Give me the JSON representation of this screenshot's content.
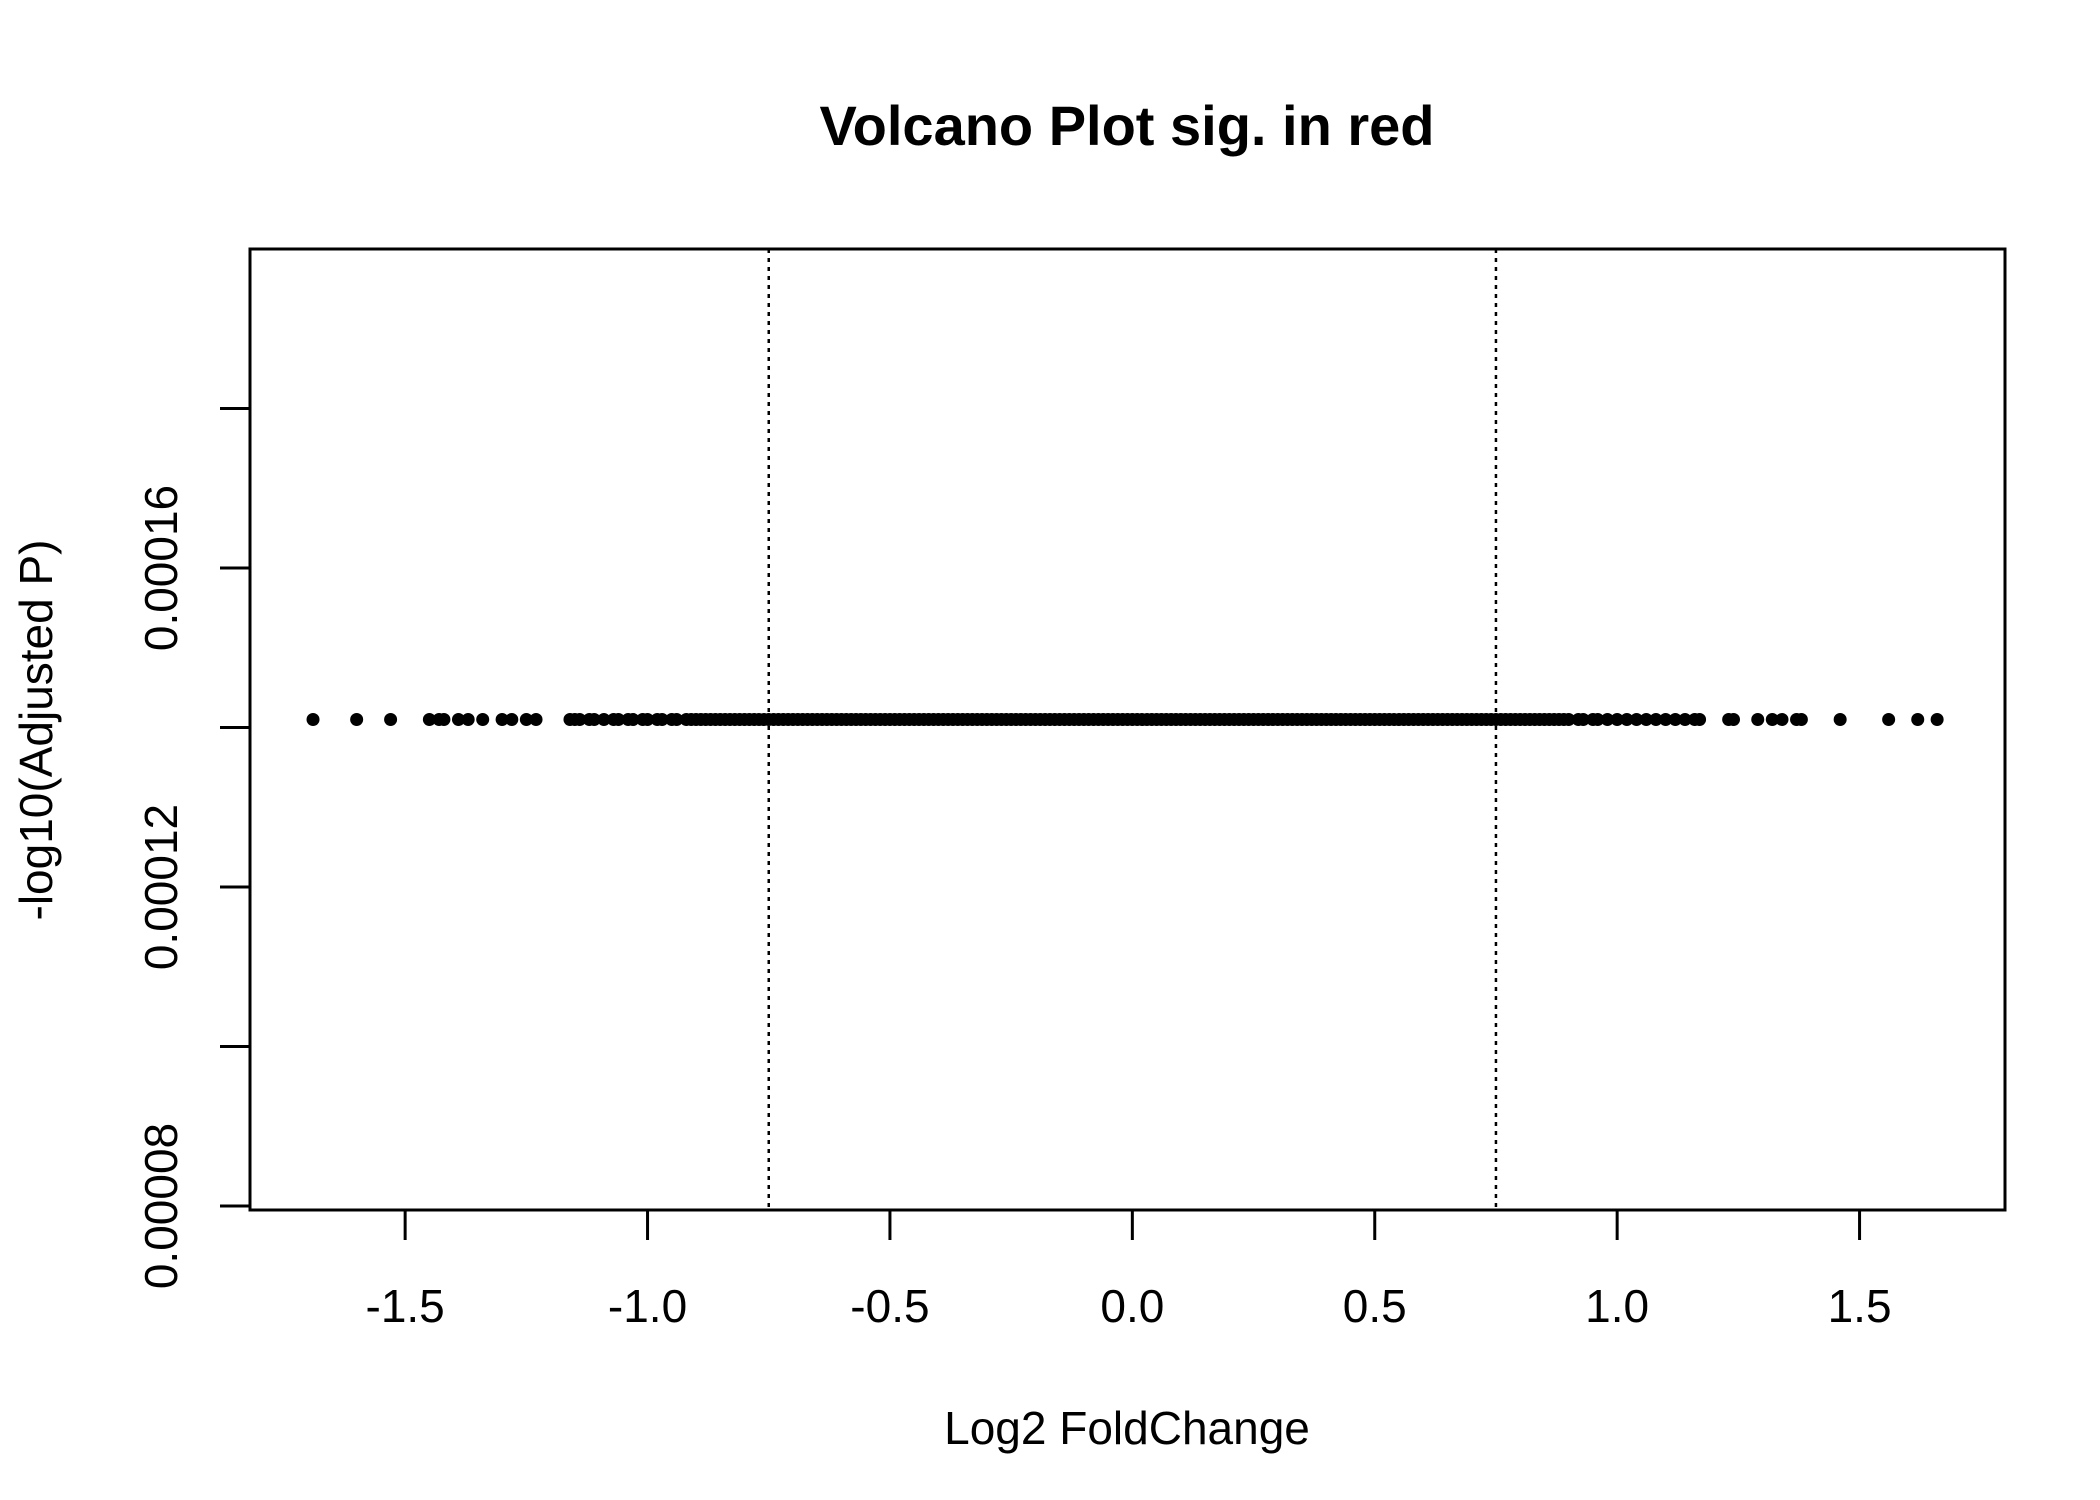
{
  "chart_data": {
    "type": "scatter",
    "title": "Volcano Plot sig. in red",
    "xlabel": "Log2 FoldChange",
    "ylabel": "-log10(Adjusted P)",
    "xlim": [
      -1.82,
      1.8
    ],
    "ylim": [
      7.95e-05,
      0.0002
    ],
    "x_ticks": [
      {
        "value": -1.5,
        "label": "-1.5"
      },
      {
        "value": -1.0,
        "label": "-1.0"
      },
      {
        "value": -0.5,
        "label": "-0.5"
      },
      {
        "value": 0.0,
        "label": "0.0"
      },
      {
        "value": 0.5,
        "label": "0.5"
      },
      {
        "value": 1.0,
        "label": "1.0"
      },
      {
        "value": 1.5,
        "label": "1.5"
      }
    ],
    "y_ticks": [
      {
        "value": 8e-05,
        "label": "0.00008"
      },
      {
        "value": 0.0001,
        "label": ""
      },
      {
        "value": 0.00012,
        "label": "0.00012"
      },
      {
        "value": 0.00014,
        "label": ""
      },
      {
        "value": 0.00016,
        "label": "0.00016"
      },
      {
        "value": 0.00018,
        "label": ""
      }
    ],
    "reference_lines": [
      {
        "axis": "x",
        "value": -0.75,
        "style": "dotted"
      },
      {
        "axis": "x",
        "value": 0.75,
        "style": "dotted"
      }
    ],
    "series": [
      {
        "color": "#000000",
        "y_constant": 0.000141,
        "x": [
          -1.69,
          -1.6,
          -1.53,
          -1.45,
          -1.43,
          -1.42,
          -1.39,
          -1.37,
          -1.34,
          -1.3,
          -1.28,
          -1.25,
          -1.23,
          -1.16,
          -1.15,
          -1.14,
          -1.12,
          -1.11,
          -1.09,
          -1.07,
          -1.06,
          -1.04,
          -1.03,
          -1.01,
          -1.0,
          -0.98,
          -0.97,
          -0.95,
          -0.94,
          -0.92,
          -0.91,
          -0.9,
          -0.89,
          -0.88,
          -0.87,
          -0.86,
          -0.85,
          -0.84,
          -0.83,
          -0.82,
          -0.81,
          -0.8,
          -0.79,
          -0.78,
          -0.77,
          -0.76,
          -0.75,
          -0.74,
          -0.73,
          -0.72,
          -0.71,
          -0.7,
          -0.69,
          -0.68,
          -0.67,
          -0.66,
          -0.65,
          -0.64,
          -0.63,
          -0.62,
          -0.61,
          -0.6,
          -0.59,
          -0.58,
          -0.57,
          -0.56,
          -0.55,
          -0.54,
          -0.53,
          -0.52,
          -0.51,
          -0.5,
          -0.49,
          -0.48,
          -0.47,
          -0.46,
          -0.45,
          -0.44,
          -0.43,
          -0.42,
          -0.41,
          -0.4,
          -0.39,
          -0.38,
          -0.37,
          -0.36,
          -0.35,
          -0.34,
          -0.33,
          -0.32,
          -0.31,
          -0.3,
          -0.29,
          -0.28,
          -0.27,
          -0.26,
          -0.25,
          -0.24,
          -0.23,
          -0.22,
          -0.21,
          -0.2,
          -0.19,
          -0.18,
          -0.17,
          -0.16,
          -0.15,
          -0.14,
          -0.13,
          -0.12,
          -0.11,
          -0.1,
          -0.09,
          -0.08,
          -0.07,
          -0.06,
          -0.05,
          -0.04,
          -0.03,
          -0.02,
          -0.01,
          0.0,
          0.01,
          0.02,
          0.03,
          0.04,
          0.05,
          0.06,
          0.07,
          0.08,
          0.09,
          0.1,
          0.11,
          0.12,
          0.13,
          0.14,
          0.15,
          0.16,
          0.17,
          0.18,
          0.19,
          0.2,
          0.21,
          0.22,
          0.23,
          0.24,
          0.25,
          0.26,
          0.27,
          0.28,
          0.29,
          0.3,
          0.31,
          0.32,
          0.33,
          0.34,
          0.35,
          0.36,
          0.37,
          0.38,
          0.39,
          0.4,
          0.41,
          0.42,
          0.43,
          0.44,
          0.45,
          0.46,
          0.47,
          0.48,
          0.49,
          0.5,
          0.51,
          0.52,
          0.53,
          0.54,
          0.55,
          0.56,
          0.57,
          0.58,
          0.59,
          0.6,
          0.61,
          0.62,
          0.63,
          0.64,
          0.65,
          0.66,
          0.67,
          0.68,
          0.69,
          0.7,
          0.71,
          0.72,
          0.73,
          0.74,
          0.75,
          0.76,
          0.77,
          0.78,
          0.79,
          0.8,
          0.81,
          0.82,
          0.83,
          0.84,
          0.85,
          0.86,
          0.87,
          0.88,
          0.89,
          0.9,
          0.92,
          0.93,
          0.95,
          0.96,
          0.98,
          1.0,
          1.02,
          1.04,
          1.06,
          1.08,
          1.1,
          1.12,
          1.14,
          1.16,
          1.17,
          1.23,
          1.24,
          1.29,
          1.32,
          1.34,
          1.37,
          1.38,
          1.46,
          1.56,
          1.62,
          1.66
        ]
      }
    ]
  }
}
